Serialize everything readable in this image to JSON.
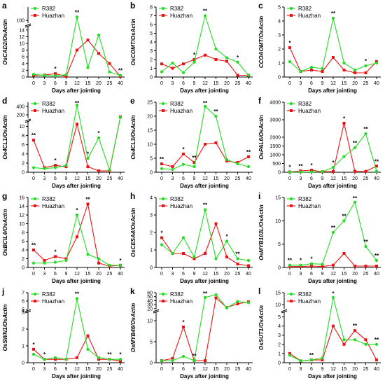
{
  "colors": {
    "r382": "#22dd22",
    "huazhan": "#ee1111",
    "axis": "#000000"
  },
  "chart_data": [
    {
      "type": "line",
      "letter": "a",
      "ylabel": "OsCAD2/OsActin",
      "xlabel": "Days after jointing",
      "x": [
        0,
        3,
        6,
        9,
        12,
        15,
        20,
        25,
        40
      ],
      "ylim": [
        0,
        120
      ],
      "yticks": [
        0,
        2,
        4,
        6,
        8,
        10,
        12,
        14,
        100
      ],
      "yscale": "broken",
      "break": [
        15,
        95
      ],
      "series": [
        {
          "name": "R382",
          "values": [
            0.8,
            0.5,
            0.4,
            0.7,
            105,
            2.8,
            12.5,
            1.5,
            0.5
          ]
        },
        {
          "name": "Huazhan",
          "values": [
            0.5,
            0.6,
            1.0,
            0.2,
            8.0,
            11.0,
            7.0,
            4.0,
            0.2
          ]
        }
      ],
      "sig": [
        {
          "i": 2,
          "text": "*"
        },
        {
          "i": 4,
          "text": "**"
        },
        {
          "i": 8,
          "text": "**"
        }
      ]
    },
    {
      "type": "line",
      "letter": "b",
      "ylabel": "OsCOMT/OsActin",
      "xlabel": "Days after jointing",
      "x": [
        0,
        3,
        6,
        9,
        12,
        15,
        20,
        25,
        40
      ],
      "ylim": [
        0,
        8
      ],
      "yticks": [
        0,
        1,
        2,
        3,
        4,
        5,
        6,
        7,
        8
      ],
      "yscale": "linear",
      "series": [
        {
          "name": "R382",
          "values": [
            0.6,
            1.6,
            0.5,
            1.7,
            7.0,
            3.2,
            2.2,
            1.7,
            0.2
          ]
        },
        {
          "name": "Huazhan",
          "values": [
            1.5,
            1.0,
            1.5,
            2.0,
            2.5,
            2.0,
            1.8,
            0.2,
            0.2
          ]
        }
      ],
      "sig": [
        {
          "i": 3,
          "text": "*"
        },
        {
          "i": 4,
          "text": "**"
        },
        {
          "i": 7,
          "text": "*"
        }
      ]
    },
    {
      "type": "line",
      "letter": "c",
      "ylabel": "CCOAOMT/OsActin",
      "xlabel": "Days after jointing",
      "x": [
        0,
        3,
        6,
        9,
        12,
        15,
        20,
        25,
        40
      ],
      "ylim": [
        0,
        5
      ],
      "yticks": [
        0,
        1,
        2,
        3,
        4,
        5
      ],
      "yscale": "linear",
      "series": [
        {
          "name": "R382",
          "values": [
            1.1,
            0.4,
            0.7,
            0.6,
            4.2,
            1.0,
            0.5,
            0.8,
            1.0
          ]
        },
        {
          "name": "Huazhan",
          "values": [
            2.1,
            0.4,
            0.5,
            0.4,
            1.4,
            0.5,
            0.3,
            0.3,
            1.1
          ]
        }
      ],
      "sig": [
        {
          "i": 0,
          "text": "*"
        },
        {
          "i": 4,
          "text": "**"
        },
        {
          "i": 7,
          "text": "*"
        }
      ]
    },
    {
      "type": "line",
      "letter": "d",
      "ylabel": "Os4CL1/OsActin",
      "xlabel": "Days after jointing",
      "x": [
        0,
        3,
        6,
        9,
        12,
        15,
        20,
        25,
        40
      ],
      "ylim": [
        0,
        500
      ],
      "yticks": [
        0,
        2,
        4,
        6,
        8,
        10,
        200,
        400
      ],
      "yscale": "broken",
      "break": [
        11,
        100
      ],
      "series": [
        {
          "name": "R382",
          "values": [
            1.0,
            0.8,
            1.0,
            1.5,
            430,
            3.0,
            7.5,
            0.5,
            140
          ]
        },
        {
          "name": "Huazhan",
          "values": [
            7.0,
            1.0,
            1.5,
            1.2,
            10.5,
            1.2,
            0.3,
            0.3,
            150
          ]
        }
      ],
      "sig": [
        {
          "i": 0,
          "text": "**"
        },
        {
          "i": 2,
          "text": "*"
        },
        {
          "i": 4,
          "text": "**"
        },
        {
          "i": 5,
          "text": "*"
        },
        {
          "i": 6,
          "text": "*"
        }
      ]
    },
    {
      "type": "line",
      "letter": "e",
      "ylabel": "Os4CL3/OsActin",
      "xlabel": "Days after jointing",
      "x": [
        0,
        3,
        6,
        9,
        12,
        15,
        20,
        25,
        40
      ],
      "ylim": [
        0,
        25
      ],
      "yticks": [
        0,
        5,
        10,
        15,
        20,
        25
      ],
      "yscale": "linear",
      "series": [
        {
          "name": "R382",
          "values": [
            1.3,
            1.0,
            2.8,
            2.0,
            23.5,
            20.0,
            4.5,
            3.0,
            2.0
          ]
        },
        {
          "name": "Huazhan",
          "values": [
            3.0,
            2.0,
            6.5,
            3.5,
            10.0,
            10.5,
            4.0,
            3.5,
            5.5
          ]
        }
      ],
      "sig": [
        {
          "i": 0,
          "text": "**"
        },
        {
          "i": 2,
          "text": "*"
        },
        {
          "i": 3,
          "text": "**"
        },
        {
          "i": 4,
          "text": "**"
        },
        {
          "i": 5,
          "text": "**"
        },
        {
          "i": 8,
          "text": "**"
        }
      ]
    },
    {
      "type": "line",
      "letter": "f",
      "ylabel": "OsPAL6/OsActin",
      "xlabel": "Days after jointing",
      "x": [
        0,
        3,
        6,
        9,
        12,
        15,
        20,
        25,
        40
      ],
      "ylim": [
        0,
        4000
      ],
      "yticks": [
        0,
        500,
        1000,
        1500,
        2000,
        3000,
        4000
      ],
      "yscale": "linear",
      "series": [
        {
          "name": "R382",
          "values": [
            10,
            15,
            20,
            30,
            280,
            900,
            1400,
            2200,
            60
          ]
        },
        {
          "name": "Huazhan",
          "values": [
            20,
            80,
            120,
            30,
            40,
            2800,
            50,
            50,
            350
          ]
        }
      ],
      "sig": [
        {
          "i": 0,
          "text": "*"
        },
        {
          "i": 1,
          "text": "**"
        },
        {
          "i": 2,
          "text": "*"
        },
        {
          "i": 4,
          "text": "*"
        },
        {
          "i": 5,
          "text": "*"
        },
        {
          "i": 6,
          "text": "**"
        },
        {
          "i": 7,
          "text": "**"
        },
        {
          "i": 8,
          "text": "**"
        }
      ]
    },
    {
      "type": "line",
      "letter": "g",
      "ylabel": "OsBCIL4/OsActin",
      "xlabel": "Days after jointing",
      "x": [
        0,
        3,
        6,
        9,
        12,
        15,
        20,
        25,
        40
      ],
      "ylim": [
        0,
        16
      ],
      "yticks": [
        0,
        2,
        4,
        6,
        8,
        10,
        12,
        14,
        16
      ],
      "yscale": "linear",
      "series": [
        {
          "name": "R382",
          "values": [
            1.0,
            1.0,
            1.2,
            1.6,
            12.0,
            3.0,
            2.0,
            0.5,
            0.5
          ]
        },
        {
          "name": "Huazhan",
          "values": [
            4.0,
            1.6,
            2.5,
            2.0,
            7.0,
            14.5,
            1.0,
            0.3,
            0.5
          ]
        }
      ],
      "sig": [
        {
          "i": 0,
          "text": "**"
        },
        {
          "i": 2,
          "text": "*"
        },
        {
          "i": 4,
          "text": "*"
        },
        {
          "i": 5,
          "text": "**"
        },
        {
          "i": 8,
          "text": "*"
        }
      ]
    },
    {
      "type": "line",
      "letter": "h",
      "ylabel": "OsCESA4/OsActin",
      "xlabel": "Days after jointing",
      "x": [
        0,
        3,
        6,
        9,
        12,
        15,
        20,
        25,
        40
      ],
      "ylim": [
        0,
        4
      ],
      "yticks": [
        0,
        1,
        2,
        3,
        4
      ],
      "yscale": "linear",
      "series": [
        {
          "name": "R382",
          "values": [
            1.3,
            0.8,
            1.7,
            0.6,
            3.3,
            0.5,
            1.5,
            0.5,
            0.4
          ]
        },
        {
          "name": "Huazhan",
          "values": [
            1.7,
            0.8,
            0.8,
            0.5,
            0.8,
            2.5,
            0.6,
            0.2,
            0.1
          ]
        }
      ],
      "sig": [
        {
          "i": 0,
          "text": "*"
        },
        {
          "i": 4,
          "text": "**"
        },
        {
          "i": 6,
          "text": "*"
        },
        {
          "i": 7,
          "text": "**"
        }
      ]
    },
    {
      "type": "line",
      "letter": "i",
      "ylabel": "OsMYB103L/OsActin",
      "xlabel": "Days after jointing",
      "x": [
        0,
        3,
        6,
        9,
        12,
        15,
        20,
        25,
        40
      ],
      "ylim": [
        0,
        15
      ],
      "yticks": [
        0,
        5,
        10,
        15
      ],
      "yscale": "linear",
      "series": [
        {
          "name": "R382",
          "values": [
            0.5,
            0.5,
            0.8,
            0.7,
            7.5,
            10,
            14,
            4.5,
            1.5
          ]
        },
        {
          "name": "Huazhan",
          "values": [
            0.2,
            0.2,
            0.3,
            0.2,
            0.5,
            3.0,
            0.3,
            0.3,
            0.3
          ]
        }
      ],
      "sig": [
        {
          "i": 0,
          "text": "**"
        },
        {
          "i": 1,
          "text": "*"
        },
        {
          "i": 2,
          "text": "*"
        },
        {
          "i": 4,
          "text": "**"
        },
        {
          "i": 5,
          "text": "**"
        },
        {
          "i": 6,
          "text": "**"
        },
        {
          "i": 7,
          "text": "**"
        },
        {
          "i": 8,
          "text": "**"
        }
      ]
    },
    {
      "type": "line",
      "letter": "j",
      "ylabel": "OsSWN1/OsActin",
      "xlabel": "Days after jointing",
      "x": [
        0,
        3,
        6,
        9,
        12,
        15,
        20,
        25,
        40
      ],
      "ylim": [
        0,
        7
      ],
      "yticks": [
        0,
        1,
        2,
        3,
        4,
        5,
        6,
        7
      ],
      "yscale": "broken",
      "break": [
        3,
        5
      ],
      "series": [
        {
          "name": "R382",
          "values": [
            0.5,
            0.2,
            0.3,
            0.2,
            6.3,
            0.8,
            0.3,
            0.2,
            0.2
          ]
        },
        {
          "name": "Huazhan",
          "values": [
            0.8,
            0.2,
            0.2,
            0.2,
            0.3,
            1.6,
            0.2,
            0.2,
            0.1
          ]
        }
      ],
      "sig": [
        {
          "i": 0,
          "text": "*"
        },
        {
          "i": 1,
          "text": "*"
        },
        {
          "i": 4,
          "text": "**"
        },
        {
          "i": 7,
          "text": "**"
        },
        {
          "i": 8,
          "text": "*"
        }
      ]
    },
    {
      "type": "line",
      "letter": "k",
      "ylabel": "OsMYB46/OsActin",
      "xlabel": "Days after jointing",
      "x": [
        0,
        3,
        6,
        9,
        12,
        15,
        20,
        25,
        40
      ],
      "ylim": [
        0,
        60
      ],
      "yticks": [
        0,
        5,
        10,
        20,
        30,
        40,
        50,
        60
      ],
      "yscale": "broken",
      "break": [
        12,
        18
      ],
      "series": [
        {
          "name": "R382",
          "values": [
            0.5,
            0.5,
            1.5,
            0.5,
            48,
            55,
            22,
            38,
            35
          ]
        },
        {
          "name": "Huazhan",
          "values": [
            0.5,
            1.0,
            8.5,
            0.5,
            0.5,
            47,
            23,
            32,
            37
          ]
        }
      ],
      "sig": [
        {
          "i": 2,
          "text": "*"
        },
        {
          "i": 3,
          "text": "**"
        },
        {
          "i": 4,
          "text": "**"
        }
      ]
    },
    {
      "type": "line",
      "letter": "l",
      "ylabel": "OsSUT1/OsActin",
      "xlabel": "Days after jointing",
      "x": [
        0,
        3,
        6,
        9,
        12,
        15,
        20,
        25,
        40
      ],
      "ylim": [
        0,
        15
      ],
      "yticks": [
        0,
        1,
        2,
        3,
        4,
        5,
        10,
        15
      ],
      "yscale": "broken",
      "break": [
        5.5,
        8
      ],
      "series": [
        {
          "name": "R382",
          "values": [
            0.8,
            0.2,
            0.3,
            0.5,
            13,
            2.5,
            2.5,
            2.0,
            2.0
          ]
        },
        {
          "name": "Huazhan",
          "values": [
            1.0,
            0.2,
            0.3,
            0.3,
            4.0,
            2.0,
            3.5,
            2.5,
            0.3
          ]
        }
      ],
      "sig": [
        {
          "i": 2,
          "text": "**"
        },
        {
          "i": 4,
          "text": "*"
        },
        {
          "i": 6,
          "text": "**"
        },
        {
          "i": 8,
          "text": "**"
        }
      ]
    }
  ]
}
